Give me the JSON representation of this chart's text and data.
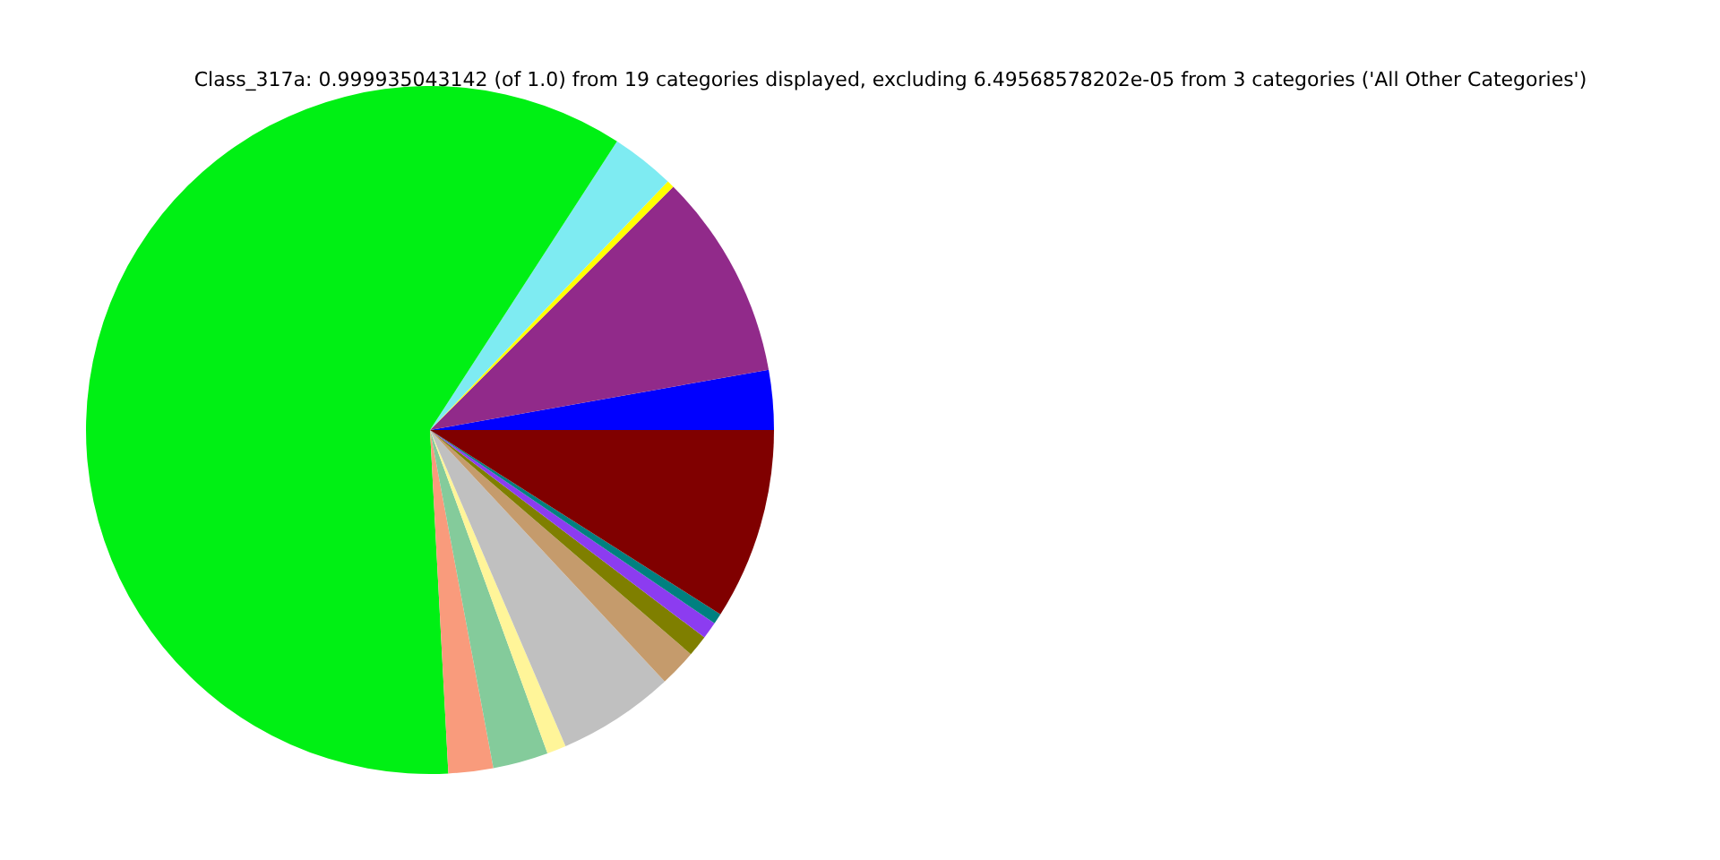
{
  "chart_data": {
    "type": "pie",
    "title": "Class_317a: 0.999935043142 (of 1.0) from 19 categories displayed, excluding 6.49568578202e-05 from 3 categories ('All Other Categories')",
    "categories": [
      null,
      null,
      null,
      null,
      null,
      null,
      null,
      null,
      null,
      null,
      null,
      null,
      null,
      null
    ],
    "values": [
      2.8,
      9.7,
      0.35,
      3.0,
      60.0,
      2.1,
      2.6,
      0.9,
      5.5,
      1.75,
      1.0,
      0.8,
      0.5,
      9.0
    ],
    "colors": [
      "#0000ff",
      "#912a8a",
      "#ffff00",
      "#7eebf2",
      "#00f014",
      "#f99b7c",
      "#84cb9b",
      "#fff599",
      "#c0c0c0",
      "#c59b6c",
      "#7f7f00",
      "#8c3cf0",
      "#008080",
      "#800000"
    ]
  }
}
